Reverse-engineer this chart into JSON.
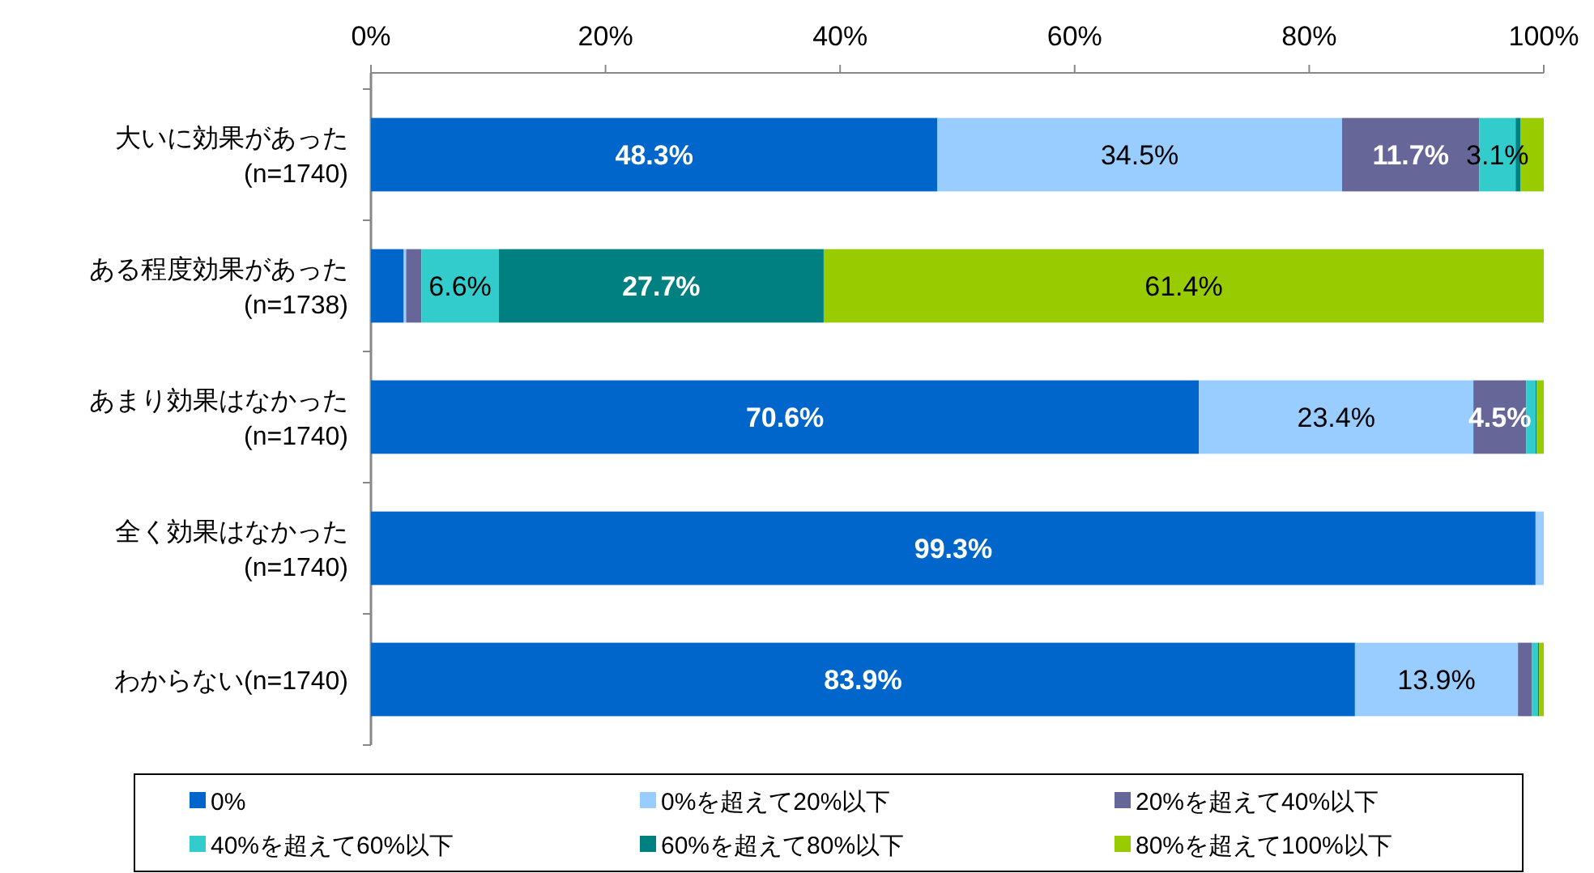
{
  "chart_data": {
    "type": "bar",
    "orientation": "horizontal",
    "stacked": true,
    "legend": "bottom",
    "grid": false,
    "categories": [
      "大いに効果があった\n(n=1740)",
      "ある程度効果があった\n(n=1738)",
      "あまり効果はなかった\n(n=1740)",
      "全く効果はなかった\n(n=1740)",
      "わからない(n=1740)"
    ],
    "xlim": [
      0,
      100
    ],
    "xticks": [
      {
        "value": 0,
        "label": "0%"
      },
      {
        "value": 20,
        "label": "20%"
      },
      {
        "value": 40,
        "label": "40%"
      },
      {
        "value": 60,
        "label": "60%"
      },
      {
        "value": 80,
        "label": "80%"
      },
      {
        "value": 100,
        "label": "100%"
      }
    ],
    "series": [
      {
        "name": "0%",
        "color": "#0066cc",
        "values": [
          48.3,
          2.8,
          70.6,
          99.3,
          83.9
        ],
        "value_labels": [
          "48.3%",
          null,
          "70.6%",
          "99.3%",
          "83.9%"
        ]
      },
      {
        "name": "0%を超えて20%以下",
        "color": "#99ccff",
        "values": [
          34.5,
          0.2,
          23.4,
          0.7,
          13.9
        ],
        "value_labels": [
          "34.5%",
          null,
          "23.4%",
          null,
          "13.9%"
        ]
      },
      {
        "name": "20%を超えて40%以下",
        "color": "#666699",
        "values": [
          11.7,
          1.3,
          4.5,
          0,
          1.2
        ],
        "value_labels": [
          "11.7%",
          null,
          "4.5%",
          null,
          null
        ]
      },
      {
        "name": "40%を超えて60%以下",
        "color": "#33cccc",
        "values": [
          3.1,
          6.6,
          0.8,
          0,
          0.5
        ],
        "value_labels": [
          "3.1%",
          "6.6%",
          null,
          null,
          null
        ]
      },
      {
        "name": "60%を超えて80%以下",
        "color": "#008080",
        "values": [
          0.4,
          27.7,
          0.1,
          0,
          0.1
        ],
        "value_labels": [
          null,
          "27.7%",
          null,
          null,
          null
        ]
      },
      {
        "name": "80%を超えて100%以下",
        "color": "#99cc00",
        "values": [
          2.0,
          61.4,
          0.6,
          0,
          0.4
        ],
        "value_labels": [
          null,
          "61.4%",
          null,
          null,
          null
        ]
      }
    ]
  }
}
